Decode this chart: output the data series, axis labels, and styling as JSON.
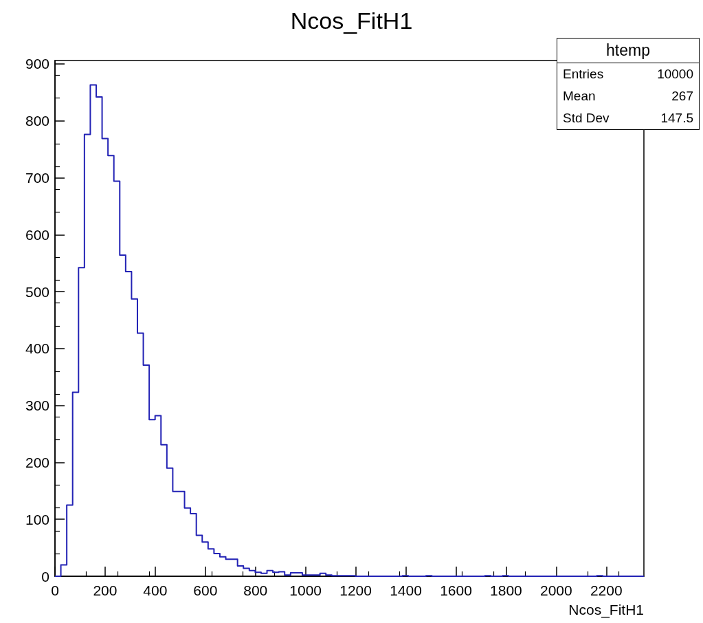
{
  "chart_data": {
    "type": "histogram",
    "title": "Ncos_FitH1",
    "xlabel": "Ncos_FitH1",
    "color": "#2323b5",
    "bins": [
      0,
      23.5,
      47,
      70.5,
      94,
      117.5,
      141,
      164.5,
      188,
      211.5,
      235,
      258.5,
      282,
      305.5,
      329,
      352.5,
      376,
      399.5,
      423,
      446.5,
      470,
      493.5,
      517,
      540.5,
      564,
      587.5,
      611,
      634.5,
      658,
      681.5,
      705,
      728.5,
      752,
      775.5,
      799,
      822.5,
      846,
      869.5,
      893,
      916.5,
      940,
      963.5,
      987,
      1010.5,
      1034,
      1057.5,
      1081,
      1104.5,
      1128,
      1151.5,
      1175,
      1198.5,
      1222,
      1245.5,
      1269,
      1292.5,
      1316,
      1339.5,
      1363,
      1386.5,
      1410,
      1433.5,
      1457,
      1480.5,
      1504,
      1527.5,
      1551,
      1574.5,
      1598,
      1621.5,
      1645,
      1668.5,
      1692,
      1715.5,
      1739,
      1762.5,
      1786,
      1809.5,
      1833,
      1856.5,
      1880,
      1903.5,
      1927,
      1950.5,
      1974,
      1997.5,
      2021,
      2044.5,
      2068,
      2091.5,
      2115,
      2138.5,
      2162,
      2185.5,
      2209,
      2232.5,
      2256,
      2279.5,
      2303,
      2326.5,
      2350
    ],
    "values": [
      0,
      20,
      125,
      323,
      542,
      776,
      863,
      842,
      769,
      739,
      694,
      564,
      535,
      487,
      427,
      371,
      275,
      282,
      231,
      190,
      149,
      149,
      120,
      110,
      72,
      60,
      48,
      40,
      34,
      30,
      30,
      18,
      14,
      10,
      7,
      5,
      10,
      7,
      8,
      2,
      6,
      6,
      2,
      2,
      2,
      5,
      2,
      1,
      1,
      1,
      1,
      0,
      0,
      0,
      0,
      0,
      0,
      0,
      0,
      1,
      0,
      0,
      0,
      1,
      0,
      0,
      0,
      0,
      0,
      0,
      0,
      0,
      0,
      1,
      0,
      0,
      1,
      0,
      0,
      0,
      0,
      0,
      0,
      0,
      0,
      0,
      0,
      0,
      0,
      0,
      0,
      0,
      1,
      0,
      0,
      0,
      0,
      0,
      0,
      0
    ],
    "xlim": [
      0,
      2350
    ],
    "xticks": [
      0,
      200,
      400,
      600,
      800,
      1000,
      1200,
      1400,
      1600,
      1800,
      2000,
      2200
    ],
    "ylim": [
      0,
      906
    ],
    "yticks": [
      0,
      100,
      200,
      300,
      400,
      500,
      600,
      700,
      800,
      900
    ],
    "annotations": [
      "htemp",
      "Entries",
      "10000",
      "Mean",
      "267",
      "Std Dev",
      "147.5"
    ]
  }
}
